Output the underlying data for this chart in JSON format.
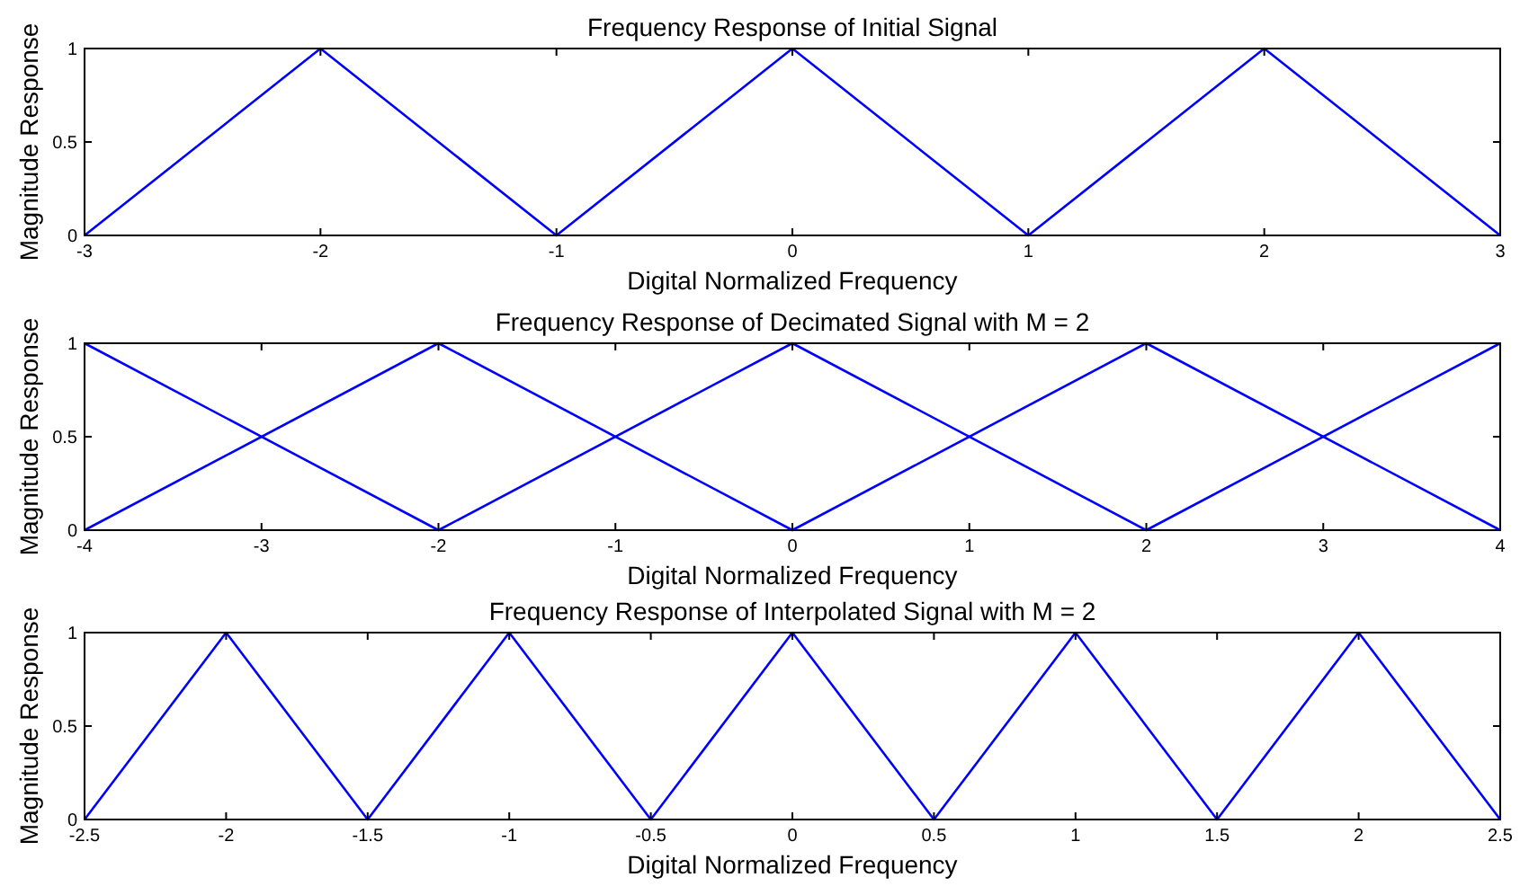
{
  "chart_data": [
    {
      "type": "line",
      "title": "Frequency Response of Initial Signal",
      "xlabel": "Digital Normalized Frequency",
      "ylabel": "Magnitude Response",
      "xlim": [
        -3,
        3
      ],
      "xticks": [
        -3,
        -2,
        -1,
        0,
        1,
        2,
        3
      ],
      "ylim": [
        0,
        1
      ],
      "yticks": [
        0,
        0.5,
        1
      ],
      "series": [
        {
          "color": "#0000ff",
          "x": [
            -3,
            -2,
            -1,
            0,
            1,
            2,
            3
          ],
          "values": [
            0,
            1,
            0,
            1,
            0,
            1,
            0
          ]
        }
      ]
    },
    {
      "type": "line",
      "title": "Frequency Response of Decimated Signal with M = 2",
      "xlabel": "Digital Normalized Frequency",
      "ylabel": "Magnitude Response",
      "xlim": [
        -4,
        4
      ],
      "xticks": [
        -4,
        -3,
        -2,
        -1,
        0,
        1,
        2,
        3,
        4
      ],
      "ylim": [
        0,
        1
      ],
      "yticks": [
        0,
        0.5,
        1
      ],
      "series": [
        {
          "color": "#0000ff",
          "x": [
            -4,
            -2,
            0,
            2,
            4
          ],
          "values": [
            1,
            0,
            1,
            0,
            1
          ]
        },
        {
          "color": "#0000ff",
          "x": [
            -4,
            -2,
            0,
            2,
            4
          ],
          "values": [
            0,
            1,
            0,
            1,
            0
          ]
        }
      ]
    },
    {
      "type": "line",
      "title": "Frequency Response of Interpolated Signal with M = 2",
      "xlabel": "Digital Normalized Frequency",
      "ylabel": "Magnitude Response",
      "xlim": [
        -2.5,
        2.5
      ],
      "xticks": [
        -2.5,
        -2,
        -1.5,
        -1,
        -0.5,
        0,
        0.5,
        1,
        1.5,
        2,
        2.5
      ],
      "ylim": [
        0,
        1
      ],
      "yticks": [
        0,
        0.5,
        1
      ],
      "series": [
        {
          "color": "#0000ff",
          "x": [
            -2.5,
            -2,
            -1.5,
            -1,
            -0.5,
            0,
            0.5,
            1,
            1.5,
            2,
            2.5
          ],
          "values": [
            0,
            1,
            0,
            1,
            0,
            1,
            0,
            1,
            0,
            1,
            0
          ]
        }
      ]
    }
  ]
}
